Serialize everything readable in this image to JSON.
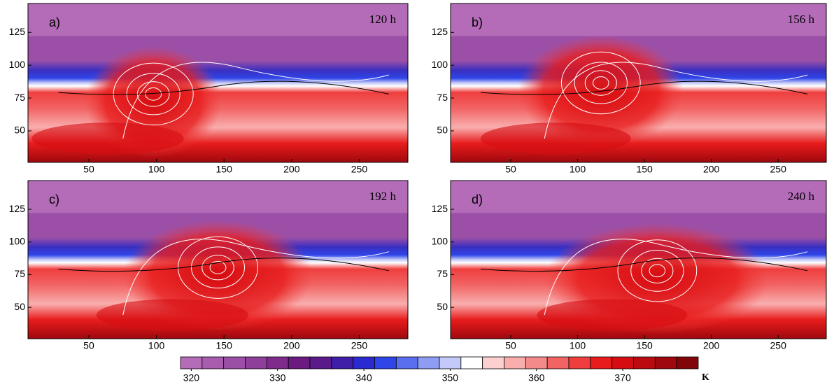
{
  "chart_data": [
    {
      "type": "contour",
      "panel_label": "a)",
      "time_label": "120 h",
      "xlim": [
        5,
        286
      ],
      "ylim": [
        26,
        147
      ],
      "xticks": [
        50,
        100,
        150,
        200,
        250
      ],
      "yticks": [
        50,
        75,
        100,
        125
      ]
    },
    {
      "type": "contour",
      "panel_label": "b)",
      "time_label": "156 h",
      "xlim": [
        5,
        286
      ],
      "ylim": [
        26,
        147
      ],
      "xticks": [
        50,
        100,
        150,
        200,
        250
      ],
      "yticks": [
        50,
        75,
        100,
        125
      ]
    },
    {
      "type": "contour",
      "panel_label": "c)",
      "time_label": "192 h",
      "xlim": [
        5,
        286
      ],
      "ylim": [
        26,
        147
      ],
      "xticks": [
        50,
        100,
        150,
        200,
        250
      ],
      "yticks": [
        50,
        75,
        100,
        125
      ]
    },
    {
      "type": "contour",
      "panel_label": "d)",
      "time_label": "240 h",
      "xlim": [
        5,
        286
      ],
      "ylim": [
        26,
        147
      ],
      "xticks": [
        50,
        100,
        150,
        200,
        250
      ],
      "yticks": [
        50,
        75,
        100,
        125
      ]
    },
    {
      "type": "colorbar",
      "unit": "K",
      "xlim": [
        318.75,
        378.75
      ],
      "xticks": [
        320,
        330,
        340,
        350,
        360,
        370
      ],
      "levels": [
        320,
        322.5,
        325,
        327.5,
        330,
        332.5,
        335,
        337.5,
        340,
        342.5,
        345,
        347.5,
        350,
        352.5,
        355,
        357.5,
        360,
        362.5,
        365,
        367.5,
        370,
        372.5,
        375,
        377.5
      ],
      "colors": [
        "#b46cb9",
        "#a85cae",
        "#9c4fa6",
        "#8e3f9a",
        "#7e2b8c",
        "#6b1a80",
        "#5a1a8a",
        "#3f1fa8",
        "#2a2ad0",
        "#2f45e8",
        "#5a6ff0",
        "#8f9cf4",
        "#c3c9f8",
        "#ffffff",
        "#fdd0d0",
        "#f9aeae",
        "#f58a8a",
        "#f26464",
        "#ef3e3e",
        "#e81c1c",
        "#d50d12",
        "#bb0a10",
        "#9e080e",
        "#80060a"
      ]
    }
  ]
}
